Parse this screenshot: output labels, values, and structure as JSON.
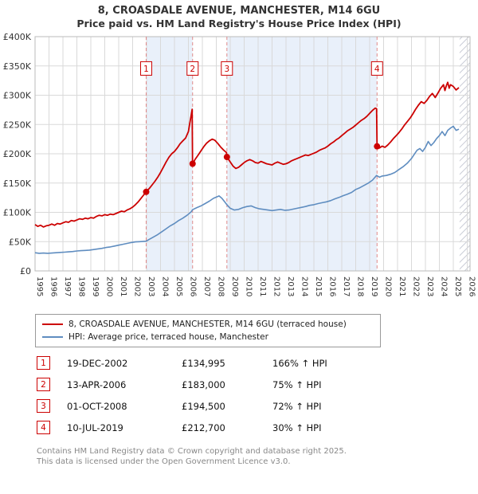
{
  "title": "8, CROASDALE AVENUE, MANCHESTER, M14 6GU",
  "subtitle": "Price paid vs. HM Land Registry's House Price Index (HPI)",
  "chart_data": {
    "type": "line",
    "x_range": [
      1995,
      2026.2
    ],
    "y_range": [
      0,
      400
    ],
    "x_ticks": [
      1995,
      1996,
      1997,
      1998,
      1999,
      2000,
      2001,
      2002,
      2003,
      2004,
      2005,
      2006,
      2007,
      2008,
      2009,
      2010,
      2011,
      2012,
      2013,
      2014,
      2015,
      2016,
      2017,
      2018,
      2019,
      2020,
      2021,
      2022,
      2023,
      2024,
      2025,
      2026
    ],
    "y_ticks": [
      [
        0,
        "£0"
      ],
      [
        50,
        "£50K"
      ],
      [
        100,
        "£100K"
      ],
      [
        150,
        "£150K"
      ],
      [
        200,
        "£200K"
      ],
      [
        250,
        "£250K"
      ],
      [
        300,
        "£300K"
      ],
      [
        350,
        "£350K"
      ],
      [
        400,
        "£400K"
      ]
    ],
    "grid_color": "#d9d9d9",
    "band_color": "#e9f0fa",
    "hatch_color": "#c9ccd6",
    "dashed_line_color": "#e08a8a",
    "bands": [
      [
        2002.97,
        2006.3
      ],
      [
        2008.76,
        2019.53
      ]
    ],
    "future_hatch": [
      2025.45,
      2026.2
    ],
    "series": [
      {
        "name": "8, CROASDALE AVENUE, MANCHESTER, M14 6GU (terraced house)",
        "color": "#cc0000",
        "points": [
          [
            1995.0,
            79
          ],
          [
            1995.2,
            76
          ],
          [
            1995.4,
            78
          ],
          [
            1995.6,
            75
          ],
          [
            1995.8,
            77
          ],
          [
            1996.0,
            78
          ],
          [
            1996.2,
            80
          ],
          [
            1996.4,
            78
          ],
          [
            1996.6,
            81
          ],
          [
            1996.8,
            80
          ],
          [
            1997.0,
            82
          ],
          [
            1997.2,
            84
          ],
          [
            1997.4,
            83
          ],
          [
            1997.6,
            86
          ],
          [
            1997.8,
            85
          ],
          [
            1998.0,
            87
          ],
          [
            1998.2,
            89
          ],
          [
            1998.4,
            88
          ],
          [
            1998.6,
            90
          ],
          [
            1998.8,
            89
          ],
          [
            1999.0,
            91
          ],
          [
            1999.2,
            90
          ],
          [
            1999.4,
            93
          ],
          [
            1999.6,
            95
          ],
          [
            1999.8,
            94
          ],
          [
            2000.0,
            96
          ],
          [
            2000.2,
            95
          ],
          [
            2000.4,
            97
          ],
          [
            2000.6,
            96
          ],
          [
            2000.8,
            98
          ],
          [
            2001.0,
            100
          ],
          [
            2001.2,
            102
          ],
          [
            2001.4,
            101
          ],
          [
            2001.6,
            104
          ],
          [
            2001.8,
            106
          ],
          [
            2002.0,
            109
          ],
          [
            2002.2,
            113
          ],
          [
            2002.4,
            118
          ],
          [
            2002.6,
            124
          ],
          [
            2002.8,
            130
          ],
          [
            2002.97,
            135
          ],
          [
            2003.2,
            141
          ],
          [
            2003.4,
            147
          ],
          [
            2003.6,
            153
          ],
          [
            2003.8,
            160
          ],
          [
            2004.0,
            168
          ],
          [
            2004.2,
            177
          ],
          [
            2004.4,
            186
          ],
          [
            2004.6,
            194
          ],
          [
            2004.8,
            200
          ],
          [
            2005.0,
            204
          ],
          [
            2005.2,
            210
          ],
          [
            2005.4,
            217
          ],
          [
            2005.6,
            222
          ],
          [
            2005.8,
            227
          ],
          [
            2006.0,
            238
          ],
          [
            2006.1,
            252
          ],
          [
            2006.2,
            266
          ],
          [
            2006.27,
            276
          ],
          [
            2006.3,
            183
          ],
          [
            2006.5,
            191
          ],
          [
            2006.7,
            198
          ],
          [
            2006.9,
            205
          ],
          [
            2007.1,
            212
          ],
          [
            2007.3,
            218
          ],
          [
            2007.5,
            222
          ],
          [
            2007.7,
            225
          ],
          [
            2007.9,
            223
          ],
          [
            2008.1,
            218
          ],
          [
            2008.3,
            212
          ],
          [
            2008.5,
            207
          ],
          [
            2008.73,
            202
          ],
          [
            2008.76,
            194.5
          ],
          [
            2009.0,
            186
          ],
          [
            2009.2,
            179
          ],
          [
            2009.4,
            175
          ],
          [
            2009.6,
            177
          ],
          [
            2009.8,
            181
          ],
          [
            2010.0,
            185
          ],
          [
            2010.2,
            188
          ],
          [
            2010.4,
            190
          ],
          [
            2010.6,
            188
          ],
          [
            2010.8,
            185
          ],
          [
            2011.0,
            184
          ],
          [
            2011.2,
            187
          ],
          [
            2011.4,
            185
          ],
          [
            2011.6,
            183
          ],
          [
            2011.8,
            182
          ],
          [
            2012.0,
            181
          ],
          [
            2012.2,
            184
          ],
          [
            2012.4,
            186
          ],
          [
            2012.6,
            184
          ],
          [
            2012.8,
            182
          ],
          [
            2013.0,
            183
          ],
          [
            2013.2,
            185
          ],
          [
            2013.4,
            188
          ],
          [
            2013.6,
            190
          ],
          [
            2013.8,
            192
          ],
          [
            2014.0,
            194
          ],
          [
            2014.2,
            196
          ],
          [
            2014.4,
            198
          ],
          [
            2014.6,
            197
          ],
          [
            2014.8,
            199
          ],
          [
            2015.0,
            201
          ],
          [
            2015.2,
            203
          ],
          [
            2015.4,
            206
          ],
          [
            2015.6,
            208
          ],
          [
            2015.8,
            210
          ],
          [
            2016.0,
            213
          ],
          [
            2016.2,
            217
          ],
          [
            2016.4,
            220
          ],
          [
            2016.6,
            224
          ],
          [
            2016.8,
            227
          ],
          [
            2017.0,
            231
          ],
          [
            2017.2,
            235
          ],
          [
            2017.4,
            239
          ],
          [
            2017.6,
            242
          ],
          [
            2017.8,
            245
          ],
          [
            2018.0,
            249
          ],
          [
            2018.2,
            253
          ],
          [
            2018.4,
            257
          ],
          [
            2018.6,
            260
          ],
          [
            2018.8,
            264
          ],
          [
            2019.0,
            269
          ],
          [
            2019.2,
            274
          ],
          [
            2019.4,
            278
          ],
          [
            2019.5,
            277
          ],
          [
            2019.53,
            212.7
          ],
          [
            2019.7,
            210
          ],
          [
            2019.9,
            213
          ],
          [
            2020.1,
            211
          ],
          [
            2020.3,
            215
          ],
          [
            2020.5,
            220
          ],
          [
            2020.7,
            226
          ],
          [
            2020.9,
            231
          ],
          [
            2021.1,
            236
          ],
          [
            2021.3,
            242
          ],
          [
            2021.5,
            249
          ],
          [
            2021.7,
            255
          ],
          [
            2021.9,
            261
          ],
          [
            2022.1,
            268
          ],
          [
            2022.3,
            276
          ],
          [
            2022.5,
            283
          ],
          [
            2022.7,
            289
          ],
          [
            2022.9,
            286
          ],
          [
            2023.1,
            291
          ],
          [
            2023.3,
            298
          ],
          [
            2023.5,
            303
          ],
          [
            2023.7,
            296
          ],
          [
            2023.9,
            304
          ],
          [
            2024.1,
            312
          ],
          [
            2024.3,
            318
          ],
          [
            2024.4,
            308
          ],
          [
            2024.5,
            316
          ],
          [
            2024.6,
            322
          ],
          [
            2024.7,
            312
          ],
          [
            2024.8,
            318
          ],
          [
            2025.0,
            315
          ],
          [
            2025.2,
            309
          ],
          [
            2025.4,
            313
          ]
        ]
      },
      {
        "name": "HPI: Average price, terraced house, Manchester",
        "color": "#5f8dc0",
        "points": [
          [
            1995.0,
            31
          ],
          [
            1995.3,
            30
          ],
          [
            1995.6,
            30.5
          ],
          [
            1995.9,
            30
          ],
          [
            1996.2,
            30.5
          ],
          [
            1996.5,
            31
          ],
          [
            1996.8,
            31.5
          ],
          [
            1997.1,
            32
          ],
          [
            1997.4,
            32.5
          ],
          [
            1997.7,
            33
          ],
          [
            1998.0,
            34
          ],
          [
            1998.3,
            34.5
          ],
          [
            1998.6,
            35
          ],
          [
            1998.9,
            35.5
          ],
          [
            1999.2,
            36.5
          ],
          [
            1999.5,
            37.5
          ],
          [
            1999.8,
            38.5
          ],
          [
            2000.1,
            40
          ],
          [
            2000.4,
            41
          ],
          [
            2000.7,
            42.5
          ],
          [
            2001.0,
            44
          ],
          [
            2001.3,
            45.5
          ],
          [
            2001.6,
            47
          ],
          [
            2001.9,
            48.5
          ],
          [
            2002.2,
            49.5
          ],
          [
            2002.5,
            50
          ],
          [
            2002.97,
            50.8
          ],
          [
            2003.2,
            54
          ],
          [
            2003.5,
            58
          ],
          [
            2003.8,
            62
          ],
          [
            2004.1,
            67
          ],
          [
            2004.4,
            72
          ],
          [
            2004.7,
            77
          ],
          [
            2005.0,
            81
          ],
          [
            2005.3,
            86
          ],
          [
            2005.6,
            90
          ],
          [
            2005.9,
            95
          ],
          [
            2006.2,
            101
          ],
          [
            2006.3,
            104.5
          ],
          [
            2006.6,
            108
          ],
          [
            2006.9,
            111
          ],
          [
            2007.2,
            115
          ],
          [
            2007.5,
            119
          ],
          [
            2007.8,
            124
          ],
          [
            2008.0,
            126
          ],
          [
            2008.2,
            128
          ],
          [
            2008.4,
            124
          ],
          [
            2008.6,
            118
          ],
          [
            2008.76,
            113
          ],
          [
            2009.0,
            107
          ],
          [
            2009.3,
            104
          ],
          [
            2009.6,
            105
          ],
          [
            2009.9,
            108
          ],
          [
            2010.2,
            110
          ],
          [
            2010.5,
            111
          ],
          [
            2010.8,
            108
          ],
          [
            2011.1,
            106
          ],
          [
            2011.4,
            105
          ],
          [
            2011.7,
            104
          ],
          [
            2012.0,
            103
          ],
          [
            2012.3,
            104
          ],
          [
            2012.6,
            105
          ],
          [
            2012.9,
            103.5
          ],
          [
            2013.2,
            104
          ],
          [
            2013.5,
            105.5
          ],
          [
            2013.8,
            107
          ],
          [
            2014.1,
            108.5
          ],
          [
            2014.4,
            110
          ],
          [
            2014.7,
            112
          ],
          [
            2015.0,
            113
          ],
          [
            2015.3,
            115
          ],
          [
            2015.6,
            116.5
          ],
          [
            2015.9,
            118
          ],
          [
            2016.2,
            120
          ],
          [
            2016.5,
            123
          ],
          [
            2016.8,
            125.5
          ],
          [
            2017.1,
            128.5
          ],
          [
            2017.4,
            131
          ],
          [
            2017.7,
            134
          ],
          [
            2018.0,
            139
          ],
          [
            2018.3,
            142
          ],
          [
            2018.6,
            146
          ],
          [
            2018.9,
            150
          ],
          [
            2019.2,
            155
          ],
          [
            2019.5,
            163
          ],
          [
            2019.7,
            160
          ],
          [
            2019.9,
            162
          ],
          [
            2020.2,
            163
          ],
          [
            2020.5,
            165
          ],
          [
            2020.8,
            168
          ],
          [
            2021.1,
            173
          ],
          [
            2021.4,
            178
          ],
          [
            2021.7,
            184
          ],
          [
            2022.0,
            192
          ],
          [
            2022.2,
            199
          ],
          [
            2022.4,
            206
          ],
          [
            2022.6,
            209
          ],
          [
            2022.8,
            204
          ],
          [
            2023.0,
            211
          ],
          [
            2023.2,
            221
          ],
          [
            2023.4,
            214
          ],
          [
            2023.6,
            219
          ],
          [
            2023.8,
            226
          ],
          [
            2024.0,
            231
          ],
          [
            2024.2,
            238
          ],
          [
            2024.4,
            231
          ],
          [
            2024.6,
            240
          ],
          [
            2024.8,
            244
          ],
          [
            2025.0,
            247
          ],
          [
            2025.2,
            240
          ],
          [
            2025.4,
            242
          ]
        ]
      }
    ],
    "sales": [
      {
        "n": "1",
        "x": 2002.97,
        "y": 135,
        "date": "19-DEC-2002",
        "price": "£134,995",
        "hpi": "166% ↑ HPI"
      },
      {
        "n": "2",
        "x": 2006.3,
        "y": 183,
        "date": "13-APR-2006",
        "price": "£183,000",
        "hpi": "75% ↑ HPI"
      },
      {
        "n": "3",
        "x": 2008.76,
        "y": 194.5,
        "date": "01-OCT-2008",
        "price": "£194,500",
        "hpi": "72% ↑ HPI"
      },
      {
        "n": "4",
        "x": 2019.53,
        "y": 212.7,
        "date": "10-JUL-2019",
        "price": "£212,700",
        "hpi": "30% ↑ HPI"
      }
    ],
    "marker_label_y": 345
  },
  "footer_line1": "Contains HM Land Registry data © Crown copyright and database right 2025.",
  "footer_line2": "This data is licensed under the Open Government Licence v3.0."
}
